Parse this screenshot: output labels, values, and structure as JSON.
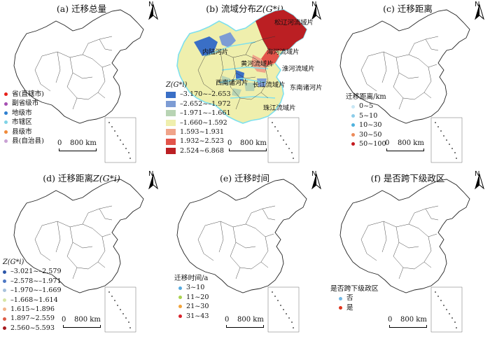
{
  "panels": {
    "a": {
      "title": "(a) 迁移总量",
      "legend": [
        {
          "label": "省(直辖市)",
          "color": "#e8211a"
        },
        {
          "label": "副省级市",
          "color": "#a64fb2"
        },
        {
          "label": "地级市",
          "color": "#2e7fd0"
        },
        {
          "label": "市辖区",
          "color": "#7fd3e6"
        },
        {
          "label": "县级市",
          "color": "#ef8a3a"
        },
        {
          "label": "县(自治县)",
          "color": "#c9a1d4"
        }
      ]
    },
    "b": {
      "title_pre": "(b) 流域分布",
      "title_z": "Z(G*i)",
      "legend_title": "Z(G*i)",
      "legend": [
        {
          "label": "–3.170~–2.653",
          "color": "#3a6fc6"
        },
        {
          "label": "–2.652~–1.972",
          "color": "#7d9cd4"
        },
        {
          "label": "–1.971~–1.661",
          "color": "#b8d4b4"
        },
        {
          "label": "–1.660~1.592",
          "color": "#efefad"
        },
        {
          "label": "1.593~1.931",
          "color": "#f0a48a"
        },
        {
          "label": "1.932~2.523",
          "color": "#e2544a"
        },
        {
          "label": "2.524~6.868",
          "color": "#bb1f23"
        }
      ],
      "basins": [
        "松辽河流域片",
        "内陆河片",
        "海河流域片",
        "黄河流域片",
        "淮河流域片",
        "西南诸河片",
        "长江流域片",
        "东南诸河片",
        "珠江流域片"
      ]
    },
    "c": {
      "title": "(c) 迁移距离",
      "legend_title": "迁移距离/km",
      "legend": [
        {
          "label": "0~5",
          "color": "#c8e7f5"
        },
        {
          "label": "5~10",
          "color": "#8dcdea"
        },
        {
          "label": "10~30",
          "color": "#4fb2de"
        },
        {
          "label": "30~50",
          "color": "#ec8b5a"
        },
        {
          "label": "50~100",
          "color": "#c41a1f"
        }
      ]
    },
    "d": {
      "title_pre": "(d) 迁移距离",
      "title_z": "Z(G*i)",
      "legend_title": "Z(G*i)",
      "legend": [
        {
          "label": "–3.021~–2.579",
          "color": "#2c56a8"
        },
        {
          "label": "–2.578~–1.971",
          "color": "#4e78c4"
        },
        {
          "label": "–1.970~–1.669",
          "color": "#a8c2dc"
        },
        {
          "label": "–1.668~1.614",
          "color": "#d7e6a6"
        },
        {
          "label": "1.615~1.896",
          "color": "#f3b48a"
        },
        {
          "label": "1.897~2.559",
          "color": "#dd5b45"
        },
        {
          "label": "2.560~5.593",
          "color": "#a5181c"
        }
      ]
    },
    "e": {
      "title": "(e) 迁移时间",
      "legend_title": "迁移时间/a",
      "legend": [
        {
          "label": "3~10",
          "color": "#55aadf"
        },
        {
          "label": "11~20",
          "color": "#a9d24e"
        },
        {
          "label": "21~30",
          "color": "#f2a33a"
        },
        {
          "label": "31~43",
          "color": "#d9222a"
        }
      ]
    },
    "f": {
      "title": "(f) 是否跨下级政区",
      "legend_title": "是否跨下级政区",
      "legend": [
        {
          "label": "否",
          "color": "#6fb8e6"
        },
        {
          "label": "是",
          "color": "#e0361f"
        }
      ]
    }
  },
  "north_letter": "N",
  "scale": {
    "zero": "0",
    "distance": "800 km"
  },
  "colors": {
    "outline": "#222222",
    "basin_border": "#7ee0ee"
  }
}
